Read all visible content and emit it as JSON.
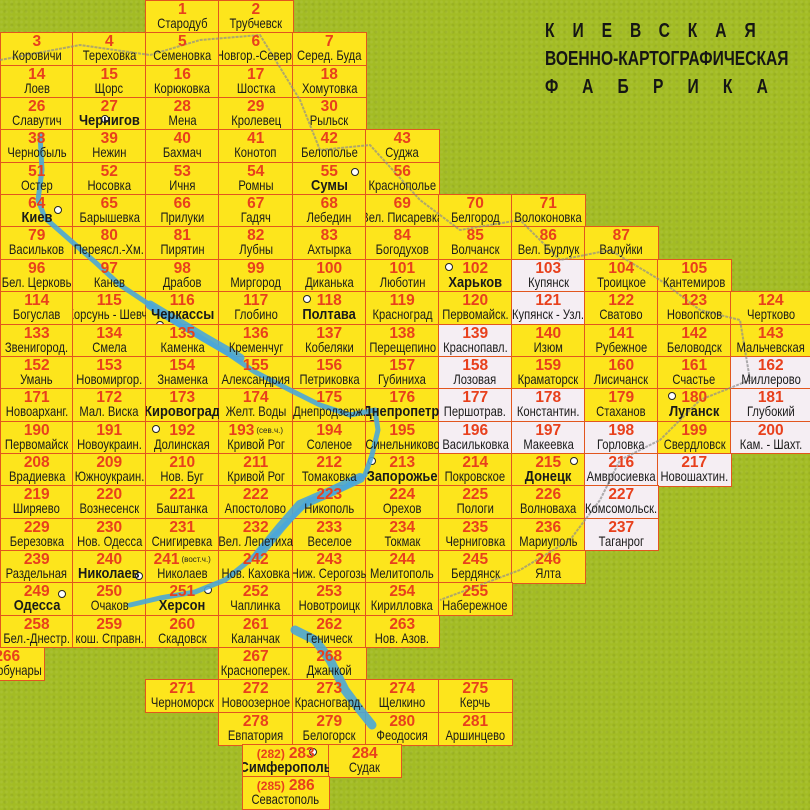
{
  "title": {
    "line1": "КИЕВСКАЯ",
    "line2": "ВОЕННО-КАРТОГРАФИЧЕСКАЯ",
    "line3": "ФАБРИКА"
  },
  "colors": {
    "sheet": "#fde51c",
    "sheet_pale": "#f5eef3",
    "border": "#e2561e",
    "number": "#e8401c",
    "water": "#4aa6d8",
    "background": "#a3bc24"
  },
  "rows": [
    [
      {
        "num": "1",
        "name": "Стародуб"
      },
      {
        "num": "2",
        "name": "Трубчевск"
      }
    ],
    [
      {
        "num": "3",
        "name": "Коровичи"
      },
      {
        "num": "4",
        "name": "Тереховка"
      },
      {
        "num": "5",
        "name": "Семеновка"
      },
      {
        "num": "6",
        "name": "Новгор.-Север."
      },
      {
        "num": "7",
        "name": "Серед. Буда"
      }
    ],
    [
      {
        "num": "14",
        "name": "Лоев"
      },
      {
        "num": "15",
        "name": "Щорс"
      },
      {
        "num": "16",
        "name": "Корюковка"
      },
      {
        "num": "17",
        "name": "Шостка"
      },
      {
        "num": "18",
        "name": "Хомутовка"
      }
    ],
    [
      {
        "num": "26",
        "name": "Славутич"
      },
      {
        "num": "27",
        "name": "Чернигов",
        "bold": true
      },
      {
        "num": "28",
        "name": "Мена"
      },
      {
        "num": "29",
        "name": "Кролевец"
      },
      {
        "num": "30",
        "name": "Рыльск"
      }
    ],
    [
      {
        "num": "38",
        "name": "Чернобыль"
      },
      {
        "num": "39",
        "name": "Нежин"
      },
      {
        "num": "40",
        "name": "Бахмач"
      },
      {
        "num": "41",
        "name": "Конотоп"
      },
      {
        "num": "42",
        "name": "Белополье"
      },
      {
        "num": "43",
        "name": "Суджа"
      }
    ],
    [
      {
        "num": "51",
        "name": "Остер"
      },
      {
        "num": "52",
        "name": "Носовка"
      },
      {
        "num": "53",
        "name": "Ичня"
      },
      {
        "num": "54",
        "name": "Ромны"
      },
      {
        "num": "55",
        "name": "Сумы",
        "bold": true
      },
      {
        "num": "56",
        "name": "Краснополье"
      }
    ],
    [
      {
        "num": "64",
        "name": "Киев",
        "bold": true
      },
      {
        "num": "65",
        "name": "Барышевка"
      },
      {
        "num": "66",
        "name": "Прилуки"
      },
      {
        "num": "67",
        "name": "Гадяч"
      },
      {
        "num": "68",
        "name": "Лебедин"
      },
      {
        "num": "69",
        "name": "Вел. Писаревка"
      },
      {
        "num": "70",
        "name": "Белгород"
      },
      {
        "num": "71",
        "name": "Волоконовка"
      }
    ],
    [
      {
        "num": "79",
        "name": "Васильков"
      },
      {
        "num": "80",
        "name": "Переясл.-Хм."
      },
      {
        "num": "81",
        "name": "Пирятин"
      },
      {
        "num": "82",
        "name": "Лубны"
      },
      {
        "num": "83",
        "name": "Ахтырка"
      },
      {
        "num": "84",
        "name": "Богодухов"
      },
      {
        "num": "85",
        "name": "Волчанск"
      },
      {
        "num": "86",
        "name": "Вел. Бурлук"
      },
      {
        "num": "87",
        "name": "Валуйки"
      }
    ],
    [
      {
        "num": "96",
        "name": "Бел. Церковь"
      },
      {
        "num": "97",
        "name": "Канев"
      },
      {
        "num": "98",
        "name": "Драбов"
      },
      {
        "num": "99",
        "name": "Миргород"
      },
      {
        "num": "100",
        "name": "Диканька"
      },
      {
        "num": "101",
        "name": "Люботин"
      },
      {
        "num": "102",
        "name": "Харьков",
        "bold": true
      },
      {
        "num": "103",
        "name": "Купянск",
        "pale": true
      },
      {
        "num": "104",
        "name": "Троицкое"
      },
      {
        "num": "105",
        "name": "Кантемиров"
      }
    ],
    [
      {
        "num": "114",
        "name": "Богуслав"
      },
      {
        "num": "115",
        "name": "Корсунь - Шевч."
      },
      {
        "num": "116",
        "name": "Черкассы",
        "bold": true
      },
      {
        "num": "117",
        "name": "Глобино"
      },
      {
        "num": "118",
        "name": "Полтава",
        "bold": true
      },
      {
        "num": "119",
        "name": "Красноград"
      },
      {
        "num": "120",
        "name": "Первомайск."
      },
      {
        "num": "121",
        "name": "Купянск - Узл.",
        "pale": true
      },
      {
        "num": "122",
        "name": "Сватово"
      },
      {
        "num": "123",
        "name": "Новопсков"
      },
      {
        "num": "124",
        "name": "Чертково"
      }
    ],
    [
      {
        "num": "133",
        "name": "Звенигород."
      },
      {
        "num": "134",
        "name": "Смела"
      },
      {
        "num": "135",
        "name": "Каменка"
      },
      {
        "num": "136",
        "name": "Кременчуг"
      },
      {
        "num": "137",
        "name": "Кобеляки"
      },
      {
        "num": "138",
        "name": "Перещепино"
      },
      {
        "num": "139",
        "name": "Краснопавл.",
        "pale": true
      },
      {
        "num": "140",
        "name": "Изюм"
      },
      {
        "num": "141",
        "name": "Рубежное"
      },
      {
        "num": "142",
        "name": "Беловодск"
      },
      {
        "num": "143",
        "name": "Мальчевская"
      }
    ],
    [
      {
        "num": "152",
        "name": "Умань"
      },
      {
        "num": "153",
        "name": "Новомиргор."
      },
      {
        "num": "154",
        "name": "Знаменка"
      },
      {
        "num": "155",
        "name": "Александрия"
      },
      {
        "num": "156",
        "name": "Петриковка"
      },
      {
        "num": "157",
        "name": "Губиниха"
      },
      {
        "num": "158",
        "name": "Лозовая",
        "pale": true
      },
      {
        "num": "159",
        "name": "Краматорск"
      },
      {
        "num": "160",
        "name": "Лисичанск"
      },
      {
        "num": "161",
        "name": "Счастье"
      },
      {
        "num": "162",
        "name": "Миллерово",
        "pale": true
      }
    ],
    [
      {
        "num": "171",
        "name": "Новоарханг."
      },
      {
        "num": "172",
        "name": "Мал. Виска"
      },
      {
        "num": "173",
        "name": "Кировоград",
        "bold": true
      },
      {
        "num": "174",
        "name": "Желт. Воды"
      },
      {
        "num": "175",
        "name": "Днепродзерж."
      },
      {
        "num": "176",
        "name": "Днепропетр.",
        "bold": true
      },
      {
        "num": "177",
        "name": "Першотрав.",
        "pale": true
      },
      {
        "num": "178",
        "name": "Константин.",
        "pale": true
      },
      {
        "num": "179",
        "name": "Стаханов"
      },
      {
        "num": "180",
        "name": "Луганск",
        "bold": true
      },
      {
        "num": "181",
        "name": "Глубокий",
        "pale": true
      }
    ],
    [
      {
        "num": "190",
        "name": "Первомайск"
      },
      {
        "num": "191",
        "name": "Новоукраин."
      },
      {
        "num": "192",
        "name": "Долинская"
      },
      {
        "num": "193",
        "name": "Кривой Рог",
        "note": "(сев.ч.)"
      },
      {
        "num": "194",
        "name": "Соленое"
      },
      {
        "num": "195",
        "name": "Синельниково"
      },
      {
        "num": "196",
        "name": "Васильковка",
        "pale": true
      },
      {
        "num": "197",
        "name": "Макеевка",
        "pale": true
      },
      {
        "num": "198",
        "name": "Горловка",
        "pale": true
      },
      {
        "num": "199",
        "name": "Свердловск"
      },
      {
        "num": "200",
        "name": "Кам. - Шахт.",
        "pale": true
      }
    ],
    [
      {
        "num": "208",
        "name": "Врадиевка"
      },
      {
        "num": "209",
        "name": "Южноукраин."
      },
      {
        "num": "210",
        "name": "Нов. Буг"
      },
      {
        "num": "211",
        "name": "Кривой Рог"
      },
      {
        "num": "212",
        "name": "Томаковка"
      },
      {
        "num": "213",
        "name": "Запорожье",
        "bold": true
      },
      {
        "num": "214",
        "name": "Покровское"
      },
      {
        "num": "215",
        "name": "Донецк",
        "bold": true
      },
      {
        "num": "216",
        "name": "Амвросиевка",
        "pale": true
      },
      {
        "num": "217",
        "name": "Новошахтин.",
        "pale": true
      }
    ],
    [
      {
        "num": "219",
        "name": "Ширяево"
      },
      {
        "num": "220",
        "name": "Вознесенск"
      },
      {
        "num": "221",
        "name": "Баштанка"
      },
      {
        "num": "222",
        "name": "Апостолово"
      },
      {
        "num": "223",
        "name": "Никополь"
      },
      {
        "num": "224",
        "name": "Орехов"
      },
      {
        "num": "225",
        "name": "Пологи"
      },
      {
        "num": "226",
        "name": "Волноваха"
      },
      {
        "num": "227",
        "name": "Комсомольск.",
        "pale": true
      }
    ],
    [
      {
        "num": "229",
        "name": "Березовка"
      },
      {
        "num": "230",
        "name": "Нов. Одесса"
      },
      {
        "num": "231",
        "name": "Снигиревка"
      },
      {
        "num": "232",
        "name": "Вел. Лепетиха"
      },
      {
        "num": "233",
        "name": "Веселое"
      },
      {
        "num": "234",
        "name": "Токмак"
      },
      {
        "num": "235",
        "name": "Черниговка"
      },
      {
        "num": "236",
        "name": "Мариуполь"
      },
      {
        "num": "237",
        "name": "Таганрог",
        "pale": true
      }
    ],
    [
      {
        "num": "239",
        "name": "Раздельная"
      },
      {
        "num": "240",
        "name": "Николаев",
        "bold": true
      },
      {
        "num": "241",
        "name": "Николаев",
        "note": "(вост.ч.)"
      },
      {
        "num": "242",
        "name": "Нов. Каховка"
      },
      {
        "num": "243",
        "name": "Ниж. Серогозы"
      },
      {
        "num": "244",
        "name": "Мелитополь"
      },
      {
        "num": "245",
        "name": "Бердянск"
      },
      {
        "num": "246",
        "name": "Ялта"
      }
    ],
    [
      {
        "num": "249",
        "name": "Одесса",
        "bold": true
      },
      {
        "num": "250",
        "name": "Очаков"
      },
      {
        "num": "251",
        "name": "Херсон",
        "bold": true
      },
      {
        "num": "252",
        "name": "Чаплинка"
      },
      {
        "num": "253",
        "name": "Новотроицк"
      },
      {
        "num": "254",
        "name": "Кирилловка"
      },
      {
        "num": "255",
        "name": "Набережное"
      }
    ],
    [
      {
        "num": "258",
        "name": "Бел.-Днестр."
      },
      {
        "num": "259",
        "name": "кош. Справн."
      },
      {
        "num": "260",
        "name": "Скадовск"
      },
      {
        "num": "261",
        "name": "Каланчак"
      },
      {
        "num": "262",
        "name": "Геническ"
      },
      {
        "num": "263",
        "name": "Нов. Азов."
      }
    ],
    [
      {
        "num": "266",
        "name": "Татарбунары"
      },
      {
        "num": "267",
        "name": "Красноперек."
      },
      {
        "num": "268",
        "name": "Джанкой"
      }
    ],
    [
      {
        "num": "271",
        "name": "Черноморск"
      },
      {
        "num": "272",
        "name": "Новоозерное"
      },
      {
        "num": "273",
        "name": "Красногвард."
      },
      {
        "num": "274",
        "name": "Щелкино"
      },
      {
        "num": "275",
        "name": "Керчь"
      }
    ],
    [
      {
        "num": "278",
        "name": "Евпатория"
      },
      {
        "num": "279",
        "name": "Белогорск"
      },
      {
        "num": "280",
        "name": "Феодосия"
      },
      {
        "num": "281",
        "name": "Аршинцево"
      }
    ],
    [
      {
        "num": "283",
        "prefix": "(282)",
        "name": "Симферополь",
        "bold": true
      },
      {
        "num": "284",
        "name": "Судак"
      }
    ],
    [
      {
        "num": "286",
        "prefix": "(285)",
        "name": "Севастополь"
      }
    ]
  ]
}
